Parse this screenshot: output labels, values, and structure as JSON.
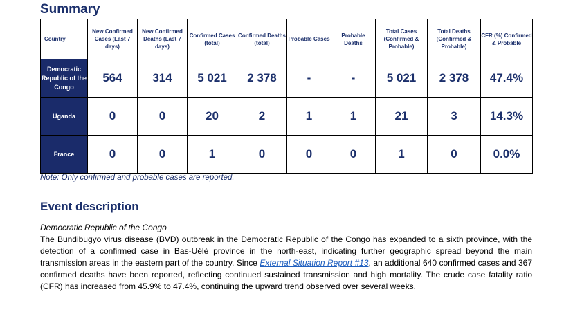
{
  "summary": {
    "title": "Summary",
    "headers": [
      "Country",
      "New Confirmed Cases (Last 7 days)",
      "New Confirmed Deaths (Last 7 days)",
      "Confirmed Cases (total)",
      "Confirmed Deaths (total)",
      "Probable Cases",
      "Probable Deaths",
      "Total Cases (Confirmed & Probable)",
      "Total Deaths (Confirmed & Probable)",
      "CFR (%) Confirmed & Probable"
    ],
    "rows": [
      {
        "country": "Democratic Republic of the Congo",
        "values": [
          "564",
          "314",
          "5 021",
          "2 378",
          "-",
          "-",
          "5 021",
          "2 378",
          "47.4%"
        ]
      },
      {
        "country": "Uganda",
        "values": [
          "0",
          "0",
          "20",
          "2",
          "1",
          "1",
          "21",
          "3",
          "14.3%"
        ]
      },
      {
        "country": "France",
        "values": [
          "0",
          "0",
          "1",
          "0",
          "0",
          "0",
          "1",
          "0",
          "0.0%"
        ]
      }
    ],
    "note": "Note: Only confirmed and probable cases are reported."
  },
  "event": {
    "title": "Event description",
    "subheading": "Democratic Republic of the Congo",
    "para_before_link": "The Bundibugyo virus disease (BVD) outbreak in the Democratic Republic of the Congo has expanded to a sixth province, with the detection of a confirmed case in Bas-Uélé province in the north-east, indicating further geographic spread beyond the main transmission areas in the eastern part of the country. Since ",
    "link_text": "External Situation Report #13",
    "para_after_link": ", an additional 640 confirmed cases and 367 confirmed deaths have been reported, reflecting continued sustained transmission and high mortality. The crude case fatality ratio (CFR) has increased from 45.9% to 47.4%, continuing the upward trend observed over several weeks."
  }
}
